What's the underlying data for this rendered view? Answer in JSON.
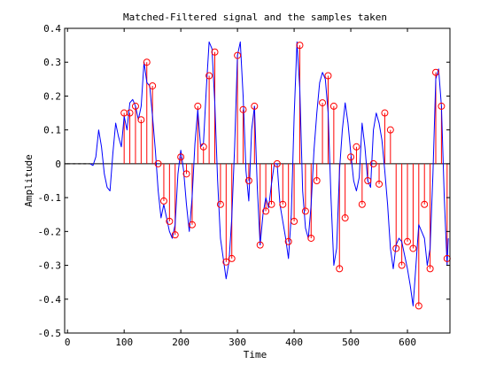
{
  "chart_data": {
    "type": "line",
    "title": "Matched-Filtered signal and the samples taken",
    "xlabel": "Time",
    "ylabel": "Amplitude",
    "xlim": [
      -5,
      675
    ],
    "ylim": [
      -0.5,
      0.4
    ],
    "xticks": [
      0,
      100,
      200,
      300,
      400,
      500,
      600
    ],
    "yticks": [
      -0.5,
      -0.4,
      -0.3,
      -0.2,
      -0.1,
      0,
      0.1,
      0.2,
      0.3,
      0.4
    ],
    "xtick_labels": [
      "0",
      "100",
      "200",
      "300",
      "400",
      "500",
      "600"
    ],
    "ytick_labels": [
      "-0.5",
      "-0.4",
      "-0.3",
      "-0.2",
      "-0.1",
      "0",
      "0.1",
      "0.2",
      "0.3",
      "0.4"
    ],
    "grid": false,
    "colors": {
      "signal": "#0000ff",
      "samples": "#ff0000",
      "baseline": "#000000"
    },
    "series": [
      {
        "style": "solid-line",
        "x": [
          0,
          40,
          45,
          50,
          55,
          60,
          65,
          70,
          75,
          80,
          85,
          90,
          95,
          100,
          105,
          110,
          115,
          120,
          125,
          130,
          135,
          140,
          145,
          150,
          155,
          160,
          165,
          170,
          175,
          180,
          185,
          190,
          195,
          200,
          205,
          210,
          215,
          220,
          225,
          230,
          235,
          240,
          245,
          250,
          255,
          260,
          265,
          270,
          275,
          280,
          285,
          290,
          295,
          300,
          305,
          310,
          315,
          320,
          325,
          330,
          335,
          340,
          345,
          350,
          355,
          360,
          365,
          370,
          375,
          380,
          385,
          390,
          395,
          400,
          405,
          410,
          415,
          420,
          425,
          430,
          435,
          440,
          445,
          450,
          455,
          460,
          465,
          470,
          475,
          480,
          485,
          490,
          495,
          500,
          505,
          510,
          515,
          520,
          525,
          530,
          535,
          540,
          545,
          550,
          555,
          560,
          565,
          570,
          575,
          580,
          585,
          590,
          595,
          600,
          605,
          610,
          615,
          620,
          625,
          630,
          635,
          640,
          645,
          650,
          655,
          660,
          665,
          670,
          672
        ],
        "values": [
          0.0,
          0.0,
          -0.005,
          0.02,
          0.1,
          0.05,
          -0.03,
          -0.07,
          -0.08,
          0.03,
          0.12,
          0.08,
          0.05,
          0.14,
          0.1,
          0.18,
          0.19,
          0.17,
          0.13,
          0.17,
          0.3,
          0.24,
          0.23,
          0.14,
          0.04,
          -0.08,
          -0.16,
          -0.12,
          -0.16,
          -0.2,
          -0.22,
          -0.18,
          -0.03,
          0.04,
          -0.02,
          -0.12,
          -0.2,
          -0.1,
          0.06,
          0.16,
          0.05,
          0.06,
          0.22,
          0.36,
          0.34,
          0.18,
          -0.05,
          -0.22,
          -0.28,
          -0.34,
          -0.29,
          -0.16,
          0.05,
          0.32,
          0.36,
          0.2,
          -0.02,
          -0.11,
          0.1,
          0.17,
          -0.07,
          -0.24,
          -0.15,
          -0.1,
          -0.13,
          -0.06,
          0.0,
          0.0,
          -0.12,
          -0.17,
          -0.22,
          -0.28,
          -0.15,
          0.14,
          0.36,
          0.22,
          -0.08,
          -0.19,
          -0.22,
          -0.12,
          0.04,
          0.15,
          0.24,
          0.27,
          0.25,
          0.15,
          -0.1,
          -0.3,
          -0.25,
          -0.02,
          0.1,
          0.18,
          0.12,
          0.03,
          -0.05,
          -0.08,
          -0.04,
          0.12,
          0.05,
          -0.05,
          -0.07,
          0.1,
          0.15,
          0.12,
          0.07,
          -0.02,
          -0.12,
          -0.25,
          -0.31,
          -0.24,
          -0.22,
          -0.23,
          -0.27,
          -0.31,
          -0.36,
          -0.42,
          -0.3,
          -0.18,
          -0.2,
          -0.22,
          -0.3,
          -0.25,
          -0.03,
          0.25,
          0.28,
          0.17,
          -0.1,
          -0.3,
          -0.22
        ]
      },
      {
        "style": "stem-circles",
        "x": [
          100,
          110,
          120,
          130,
          140,
          150,
          160,
          170,
          180,
          190,
          200,
          210,
          220,
          230,
          240,
          250,
          260,
          270,
          280,
          290,
          300,
          310,
          320,
          330,
          340,
          350,
          360,
          370,
          380,
          390,
          400,
          410,
          420,
          430,
          440,
          450,
          460,
          470,
          480,
          490,
          500,
          510,
          520,
          530,
          540,
          550,
          560,
          570,
          580,
          590,
          600,
          610,
          620,
          630,
          640,
          650,
          660,
          670
        ],
        "values": [
          0.15,
          0.15,
          0.17,
          0.13,
          0.3,
          0.23,
          0.0,
          -0.11,
          -0.17,
          -0.21,
          0.02,
          -0.03,
          -0.18,
          0.17,
          0.05,
          0.26,
          0.33,
          -0.12,
          -0.29,
          -0.28,
          0.32,
          0.16,
          -0.05,
          0.17,
          -0.24,
          -0.14,
          -0.12,
          0.0,
          -0.12,
          -0.23,
          -0.17,
          0.35,
          -0.14,
          -0.22,
          -0.05,
          0.18,
          0.26,
          0.17,
          -0.31,
          -0.16,
          0.02,
          0.05,
          -0.12,
          -0.05,
          0.0,
          -0.06,
          0.15,
          0.1,
          -0.25,
          -0.3,
          -0.23,
          -0.25,
          -0.42,
          -0.12,
          -0.31,
          0.27,
          0.17,
          -0.28
        ]
      }
    ]
  }
}
